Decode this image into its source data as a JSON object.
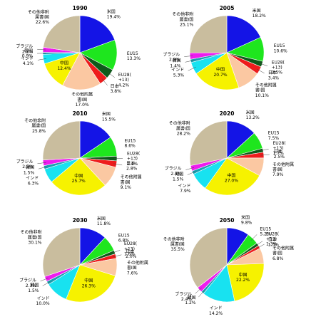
{
  "colors": {
    "米国": "#1414e6",
    "EU15": "#1ee61e",
    "EU28(+13)": "#0e5a1a",
    "日本": "#ee1c1c",
    "その他附属書I国": "#fbc8a2",
    "中国": "#f6f200",
    "インド": "#18e2f0",
    "韓国": "#1a9fb0",
    "ブラジル": "#ee1cee",
    "その他非附属書I国": "#c9bd9e"
  },
  "chart_data": [
    {
      "type": "pie",
      "title": "1990",
      "slices": [
        {
          "label": "米国",
          "display": "米国",
          "value": 19.4
        },
        {
          "label": "EU15",
          "display": "EU15",
          "value": 13.3
        },
        {
          "label": "EU28(+13)",
          "display": "EU28(+13)",
          "value": 4.2
        },
        {
          "label": "日本",
          "display": "日本",
          "value": 3.8
        },
        {
          "label": "その他附属書I国",
          "display": "その他附属書I国",
          "value": 17.0
        },
        {
          "label": "中国",
          "display": "中国",
          "value": 12.4
        },
        {
          "label": "インド",
          "display": "インド",
          "value": 4.1
        },
        {
          "label": "韓国",
          "display": "韓国",
          "value": 0.9
        },
        {
          "label": "ブラジル",
          "display": "ブラジル",
          "value": 2.2
        },
        {
          "label": "その他非附属書I国",
          "display": "その他非附属書I国",
          "value": 22.6
        }
      ]
    },
    {
      "type": "pie",
      "title": "2005",
      "slices": [
        {
          "label": "米国",
          "display": "米国",
          "value": 18.2
        },
        {
          "label": "EU15",
          "display": "EU15",
          "value": 10.6
        },
        {
          "label": "EU28(+13)",
          "display": "EU28(+13)",
          "value": 2.5
        },
        {
          "label": "日本",
          "display": "日本",
          "value": 3.4
        },
        {
          "label": "その他附属書I国",
          "display": "その他附属書I国",
          "value": 10.1
        },
        {
          "label": "中国",
          "display": "中国",
          "value": 20.7
        },
        {
          "label": "インド",
          "display": "インド",
          "value": 5.3
        },
        {
          "label": "韓国",
          "display": "韓国",
          "value": 1.4
        },
        {
          "label": "ブラジル",
          "display": "ブラジル",
          "value": 2.8
        },
        {
          "label": "その他非附属書I国",
          "display": "その他非附属書I国",
          "value": 25.1
        }
      ]
    },
    {
      "type": "pie",
      "title": "2010",
      "slices": [
        {
          "label": "米国",
          "display": "米国",
          "value": 15.5
        },
        {
          "label": "EU15",
          "display": "EU15",
          "value": 8.6
        },
        {
          "label": "EU28(+13)",
          "display": "EU28(+13)",
          "value": 2.1
        },
        {
          "label": "日本",
          "display": "日本",
          "value": 2.8
        },
        {
          "label": "その他附属書I国",
          "display": "その他附属書I国",
          "value": 9.1
        },
        {
          "label": "中国",
          "display": "中国",
          "value": 25.7
        },
        {
          "label": "インド",
          "display": "インド",
          "value": 6.3
        },
        {
          "label": "韓国",
          "display": "韓国",
          "value": 1.5
        },
        {
          "label": "ブラジル",
          "display": "ブラジル",
          "value": 2.5
        },
        {
          "label": "その他非附属書I国",
          "display": "その他非附属書I国",
          "value": 25.8
        }
      ]
    },
    {
      "type": "pie",
      "title": "2020",
      "slices": [
        {
          "label": "米国",
          "display": "米国",
          "value": 13.2
        },
        {
          "label": "EU15",
          "display": "EU15",
          "value": 7.5
        },
        {
          "label": "EU28(+13)",
          "display": "EU28(+13)",
          "value": 1.7
        },
        {
          "label": "日本",
          "display": "日本",
          "value": 2.5
        },
        {
          "label": "その他附属書I国",
          "display": "その他附属書I国",
          "value": 7.9
        },
        {
          "label": "中国",
          "display": "中国",
          "value": 27.0
        },
        {
          "label": "インド",
          "display": "インド",
          "value": 7.9
        },
        {
          "label": "韓国",
          "display": "韓国",
          "value": 1.5
        },
        {
          "label": "ブラジル",
          "display": "ブラジル",
          "value": 2.4
        },
        {
          "label": "その他非附属書I国",
          "display": "その他非附属書I国",
          "value": 28.2
        }
      ]
    },
    {
      "type": "pie",
      "title": "2030",
      "slices": [
        {
          "label": "米国",
          "display": "米国",
          "value": 11.8
        },
        {
          "label": "EU15",
          "display": "EU15",
          "value": 6.8
        },
        {
          "label": "EU28(+13)",
          "display": "EU28(+13)",
          "value": 1.6
        },
        {
          "label": "日本",
          "display": "日本",
          "value": 2.0
        },
        {
          "label": "その他附属書I国",
          "display": "その他附属書I国",
          "value": 7.6
        },
        {
          "label": "中国",
          "display": "中国",
          "value": 26.3
        },
        {
          "label": "インド",
          "display": "インド",
          "value": 10.0
        },
        {
          "label": "韓国",
          "display": "韓国",
          "value": 1.5
        },
        {
          "label": "ブラジル",
          "display": "ブラジル",
          "value": 2.3
        },
        {
          "label": "その他非附属書I国",
          "display": "その他非附属書I国",
          "value": 30.1
        }
      ]
    },
    {
      "type": "pie",
      "title": "2050",
      "slices": [
        {
          "label": "米国",
          "display": "米国",
          "value": 9.8
        },
        {
          "label": "EU15",
          "display": "EU15",
          "value": 5.2
        },
        {
          "label": "EU28(+13)",
          "display": "EU28(+13)",
          "value": 1.3
        },
        {
          "label": "日本",
          "display": "日本",
          "value": 1.3
        },
        {
          "label": "その他附属書I国",
          "display": "その他附属書I国",
          "value": 6.8
        },
        {
          "label": "中国",
          "display": "中国",
          "value": 22.2
        },
        {
          "label": "インド",
          "display": "インド",
          "value": 14.2
        },
        {
          "label": "韓国",
          "display": "韓国",
          "value": 1.2
        },
        {
          "label": "ブラジル",
          "display": "ブラジル",
          "value": 2.4
        },
        {
          "label": "その他非附属書I国",
          "display": "その他非附属書I国",
          "value": 35.5
        }
      ]
    }
  ]
}
